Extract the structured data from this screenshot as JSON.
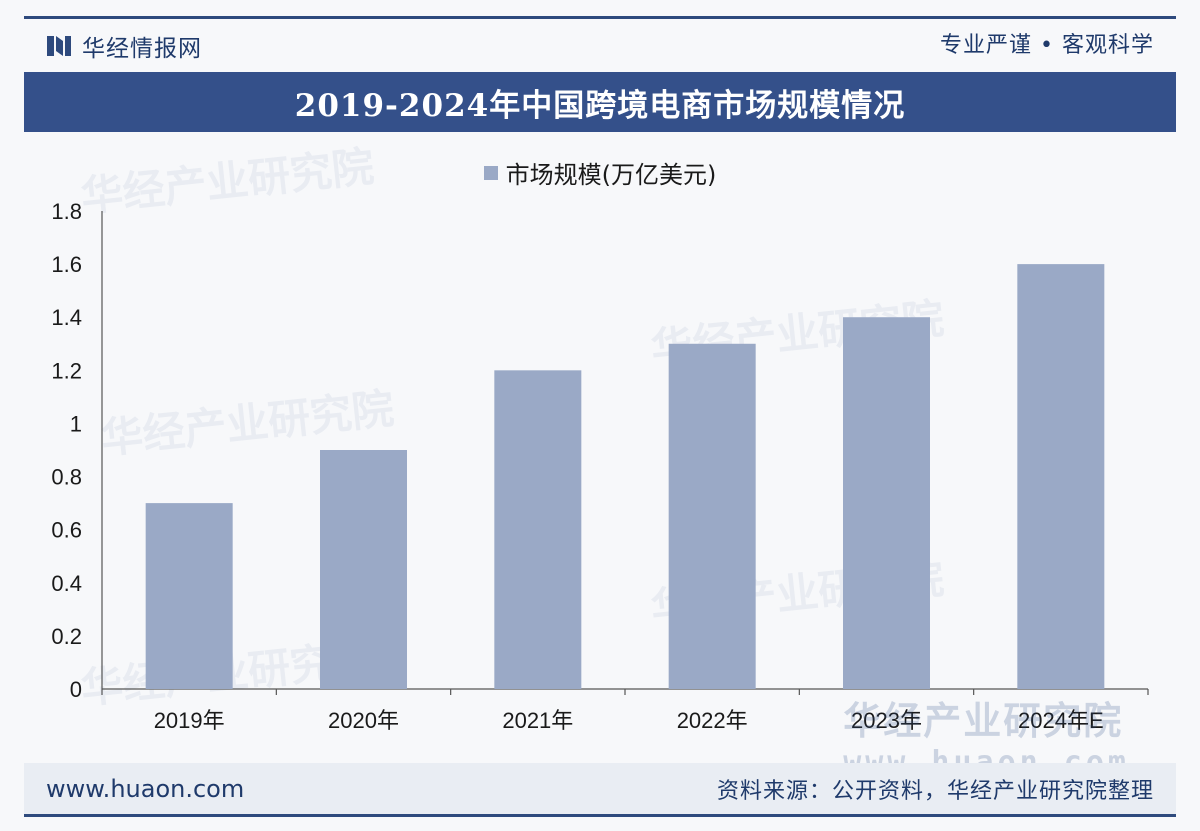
{
  "header": {
    "brand_name": "华经情报网",
    "motto": "专业严谨 • 客观科学"
  },
  "title": "2019-2024年中国跨境电商市场规模情况",
  "watermarks": {
    "text": "华经产业研究院",
    "corner_cn": "华经产业研究院",
    "corner_en": "www.huaon.com"
  },
  "footer": {
    "url": "www.huaon.com",
    "source": "资料来源：公开资料，华经产业研究院整理"
  },
  "colors": {
    "bar": "#9aa9c6",
    "title_bg": "#34508a",
    "accent": "#1f3a6b"
  },
  "chart_data": {
    "type": "bar",
    "categories": [
      "2019年",
      "2020年",
      "2021年",
      "2022年",
      "2023年",
      "2024年E"
    ],
    "series": [
      {
        "name": "市场规模(万亿美元)",
        "values": [
          0.7,
          0.9,
          1.2,
          1.3,
          1.4,
          1.6
        ]
      }
    ],
    "ylim": [
      0,
      1.8
    ],
    "yticks": [
      "0",
      "0.2",
      "0.4",
      "0.6",
      "0.8",
      "1",
      "1.2",
      "1.4",
      "1.6",
      "1.8"
    ],
    "legend_position": "top-center",
    "grid": false
  }
}
